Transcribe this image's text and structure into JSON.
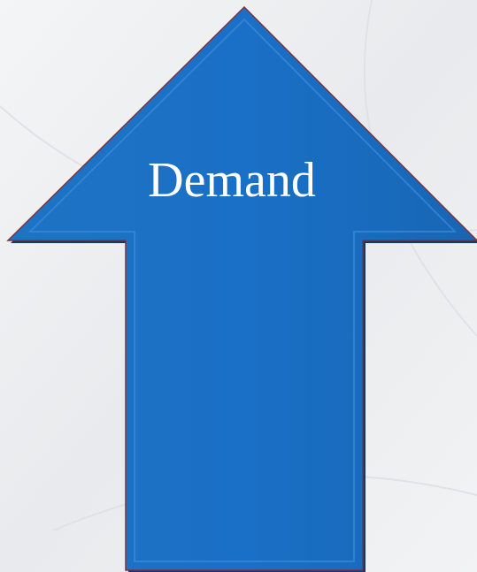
{
  "label": "Demand"
}
